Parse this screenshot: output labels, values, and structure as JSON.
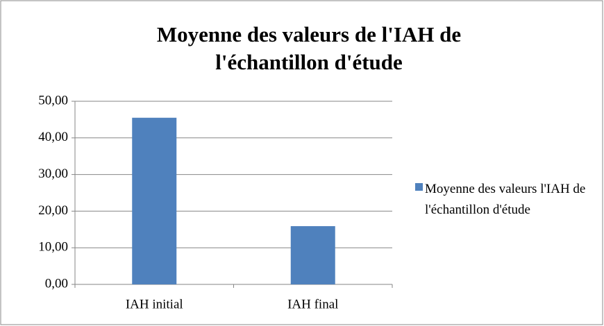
{
  "chart_data": {
    "type": "bar",
    "title": "Moyenne des valeurs de l'IAH de l'échantillon d'étude",
    "categories": [
      "IAH initial",
      "IAH final"
    ],
    "series": [
      {
        "name": "Moyenne des valeurs l'IAH de l'échantillon d'étude",
        "color": "#4f81bd",
        "values": [
          45.5,
          15.9
        ]
      }
    ],
    "ylim": [
      0,
      50
    ],
    "yticks": [
      {
        "value": 0,
        "label": "0,00"
      },
      {
        "value": 10,
        "label": "10,00"
      },
      {
        "value": 20,
        "label": "20,00"
      },
      {
        "value": 30,
        "label": "30,00"
      },
      {
        "value": 40,
        "label": "40,00"
      },
      {
        "value": 50,
        "label": "50,00"
      }
    ],
    "grid": true,
    "legend": "right"
  }
}
